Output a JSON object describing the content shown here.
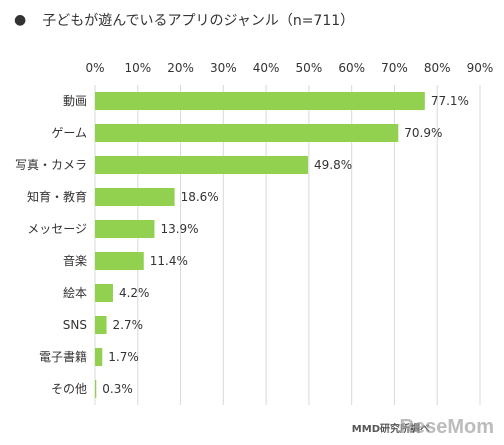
{
  "colors": {
    "bar": "#92D050",
    "grid": "#D9D9D9",
    "text": "#333333"
  },
  "bullet": "●",
  "credit": "MMD研究所調べ",
  "watermark": "ReseMom",
  "chart_data": {
    "type": "bar",
    "orientation": "horizontal",
    "title": "子どもが遊んでいるアプリのジャンル（n=711）",
    "categories": [
      "動画",
      "ゲーム",
      "写真・カメラ",
      "知育・教育",
      "メッセージ",
      "音楽",
      "絵本",
      "SNS",
      "電子書籍",
      "その他"
    ],
    "values": [
      77.1,
      70.9,
      49.8,
      18.6,
      13.9,
      11.4,
      4.2,
      2.7,
      1.7,
      0.3
    ],
    "value_labels": [
      "77.1%",
      "70.9%",
      "49.8%",
      "18.6%",
      "13.9%",
      "11.4%",
      "4.2%",
      "2.7%",
      "1.7%",
      "0.3%"
    ],
    "xlim": [
      0,
      90
    ],
    "x_ticks": [
      0,
      10,
      20,
      30,
      40,
      50,
      60,
      70,
      80,
      90
    ],
    "x_tick_labels": [
      "0%",
      "10%",
      "20%",
      "30%",
      "40%",
      "50%",
      "60%",
      "70%",
      "80%",
      "90%"
    ],
    "xlabel": "",
    "ylabel": "",
    "grid": true,
    "axis_position": "top"
  }
}
